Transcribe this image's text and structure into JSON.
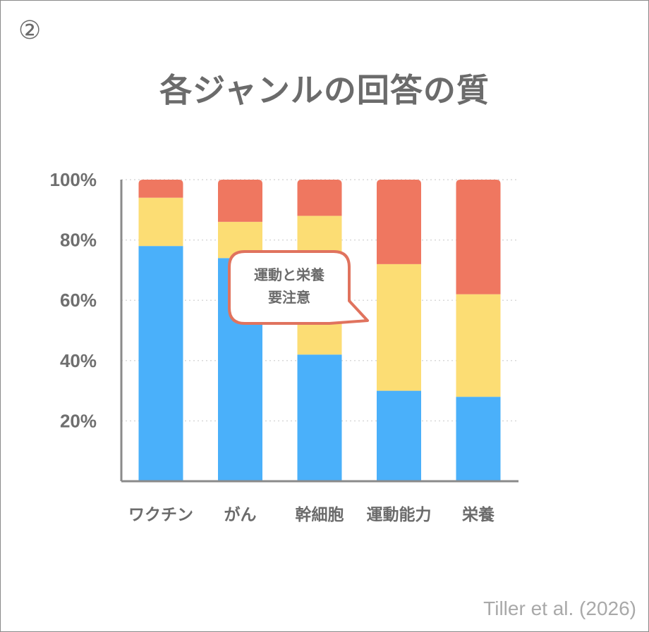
{
  "badge": "②",
  "title": "各ジャンルの回答の質",
  "credit": "Tiller et al. (2026)",
  "colors": {
    "blue": "#4ab0fa",
    "yellow": "#fcdd74",
    "red": "#ef7760",
    "axis": "#8a8a8a",
    "grid": "#d9d9d9",
    "callout_border": "#e0735e"
  },
  "chart_data": {
    "type": "bar",
    "stacked": true,
    "categories": [
      "ワクチン",
      "がん",
      "幹細胞",
      "運動能力",
      "栄養"
    ],
    "series": [
      {
        "color": "#4ab0fa",
        "values": [
          78,
          74,
          42,
          30,
          28
        ]
      },
      {
        "color": "#fcdd74",
        "values": [
          16,
          12,
          46,
          42,
          34
        ]
      },
      {
        "color": "#ef7760",
        "values": [
          6,
          14,
          12,
          28,
          38
        ]
      }
    ],
    "yticks": [
      "20%",
      "40%",
      "60%",
      "80%",
      "100%"
    ],
    "ylim": [
      0,
      100
    ],
    "grid": "dotted horizontal",
    "annotation": {
      "lines": [
        "運動と栄養",
        "要注意"
      ]
    }
  }
}
